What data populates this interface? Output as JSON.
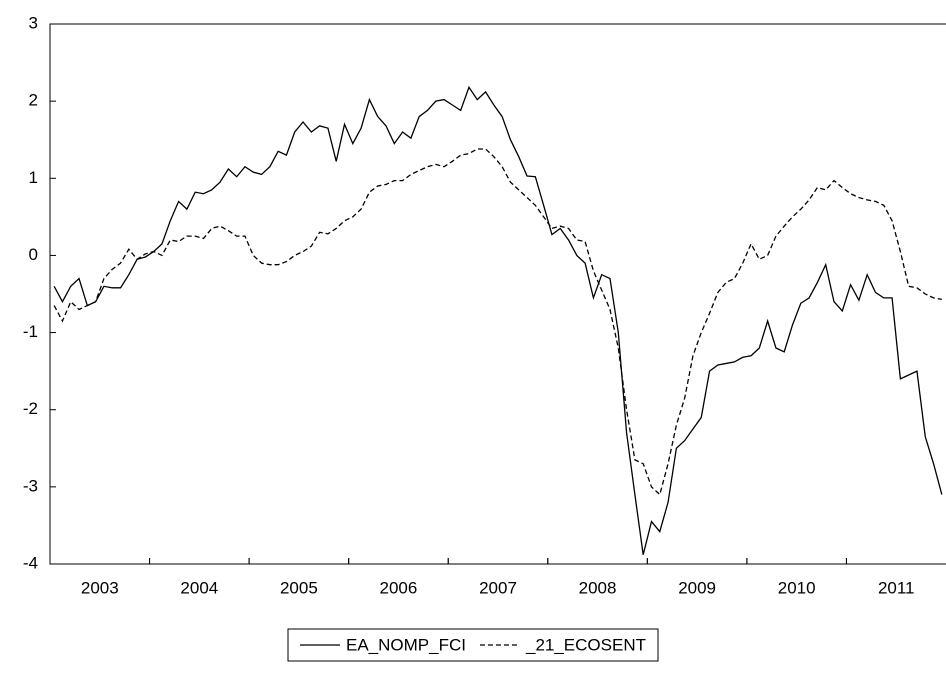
{
  "chart_data": {
    "type": "line",
    "categories": [
      null,
      null,
      null,
      null,
      null,
      null,
      "2003",
      null,
      null,
      null,
      null,
      null,
      null,
      null,
      null,
      null,
      null,
      null,
      "2004",
      null,
      null,
      null,
      null,
      null,
      null,
      null,
      null,
      null,
      null,
      null,
      "2005",
      null,
      null,
      null,
      null,
      null,
      null,
      null,
      null,
      null,
      null,
      null,
      "2006",
      null,
      null,
      null,
      null,
      null,
      null,
      null,
      null,
      null,
      null,
      null,
      "2007",
      null,
      null,
      null,
      null,
      null,
      null,
      null,
      null,
      null,
      null,
      null,
      "2008",
      null,
      null,
      null,
      null,
      null,
      null,
      null,
      null,
      null,
      null,
      null,
      "2009",
      null,
      null,
      null,
      null,
      null,
      null,
      null,
      null,
      null,
      null,
      null,
      "2010",
      null,
      null,
      null,
      null,
      null,
      null,
      null,
      null,
      null,
      null,
      null,
      "2011",
      null,
      null,
      null,
      null,
      null
    ],
    "series": [
      {
        "name": "EA_NOMP_FCI",
        "color": "#000000",
        "style": "solid",
        "values": [
          -0.4,
          -0.6,
          -0.4,
          -0.3,
          -0.65,
          -0.6,
          -0.4,
          -0.42,
          -0.42,
          -0.25,
          -0.05,
          -0.02,
          0.05,
          0.15,
          0.45,
          0.7,
          0.6,
          0.82,
          0.8,
          0.85,
          0.95,
          1.12,
          1.02,
          1.15,
          1.08,
          1.05,
          1.15,
          1.35,
          1.3,
          1.6,
          1.73,
          1.6,
          1.68,
          1.65,
          1.22,
          1.7,
          1.45,
          1.65,
          2.02,
          1.8,
          1.68,
          1.45,
          1.6,
          1.52,
          1.8,
          1.88,
          2.0,
          2.02,
          1.95,
          1.88,
          2.18,
          2.02,
          2.12,
          1.95,
          1.8,
          1.5,
          1.28,
          1.03,
          1.02,
          0.65,
          0.27,
          0.35,
          0.2,
          0.0,
          -0.1,
          -0.55,
          -0.25,
          -0.3,
          -1.0,
          -2.3,
          -3.1,
          -3.88,
          -3.45,
          -3.58,
          -3.2,
          -2.5,
          -2.4,
          -2.25,
          -2.1,
          -1.5,
          -1.42,
          -1.4,
          -1.38,
          -1.32,
          -1.3,
          -1.2,
          -0.85,
          -1.2,
          -1.25,
          -0.9,
          -0.62,
          -0.55,
          -0.35,
          -0.12,
          -0.6,
          -0.72,
          -0.38,
          -0.58,
          -0.25,
          -0.48,
          -0.55,
          -0.55,
          -1.6,
          -1.55,
          -1.5,
          -2.35,
          -2.7,
          -3.1
        ]
      },
      {
        "name": "_21_ECOSENT",
        "color": "#000000",
        "style": "dashed",
        "values": [
          -0.65,
          -0.85,
          -0.6,
          -0.7,
          -0.65,
          -0.6,
          -0.3,
          -0.18,
          -0.1,
          0.08,
          -0.05,
          0.02,
          0.05,
          0.0,
          0.2,
          0.18,
          0.25,
          0.25,
          0.22,
          0.35,
          0.38,
          0.32,
          0.25,
          0.25,
          0.0,
          -0.1,
          -0.12,
          -0.12,
          -0.08,
          0.0,
          0.05,
          0.12,
          0.3,
          0.28,
          0.35,
          0.45,
          0.5,
          0.6,
          0.82,
          0.9,
          0.92,
          0.97,
          0.97,
          1.05,
          1.1,
          1.15,
          1.18,
          1.15,
          1.22,
          1.3,
          1.32,
          1.38,
          1.38,
          1.28,
          1.15,
          0.95,
          0.85,
          0.75,
          0.65,
          0.5,
          0.35,
          0.38,
          0.35,
          0.2,
          0.18,
          -0.2,
          -0.45,
          -0.7,
          -1.2,
          -2.0,
          -2.65,
          -2.7,
          -3.0,
          -3.1,
          -2.7,
          -2.2,
          -1.85,
          -1.3,
          -1.0,
          -0.75,
          -0.48,
          -0.35,
          -0.3,
          -0.1,
          0.15,
          -0.05,
          0.0,
          0.25,
          0.38,
          0.5,
          0.6,
          0.72,
          0.88,
          0.85,
          0.97,
          0.88,
          0.8,
          0.75,
          0.72,
          0.7,
          0.65,
          0.45,
          0.05,
          -0.4,
          -0.42,
          -0.5,
          -0.55,
          -0.57
        ]
      }
    ],
    "ylim": [
      -4,
      3
    ],
    "yticks": [
      -4,
      -3,
      -2,
      -1,
      0,
      1,
      2,
      3
    ],
    "legend": "bottom"
  }
}
